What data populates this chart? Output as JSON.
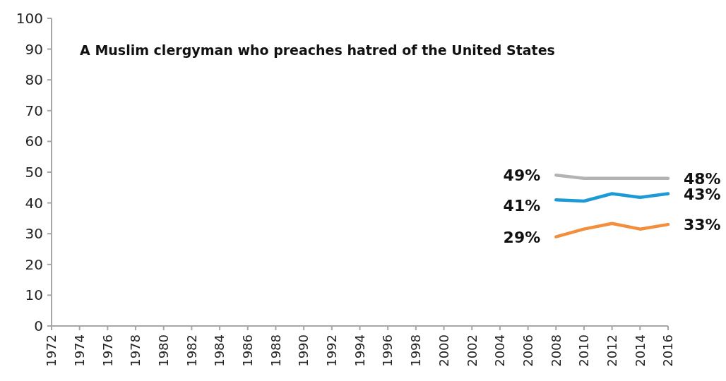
{
  "chart_data": {
    "type": "line",
    "title": "A Muslim clergyman who preaches hatred of the United States",
    "x": [
      2008,
      2010,
      2012,
      2014,
      2016
    ],
    "series": [
      {
        "color": "#b3b3b3",
        "values": [
          49,
          48,
          48,
          48,
          48
        ],
        "value_labels": [
          "49%",
          null,
          null,
          null,
          "48%"
        ]
      },
      {
        "color": "#1b9ad6",
        "values": [
          41,
          40.6,
          43,
          41.8,
          43
        ],
        "value_labels": [
          "41%",
          null,
          null,
          null,
          "43%"
        ]
      },
      {
        "color": "#f28e3c",
        "values": [
          29,
          31.5,
          33.3,
          31.5,
          33
        ],
        "value_labels": [
          "29%",
          null,
          null,
          null,
          "33%"
        ]
      }
    ],
    "xlim": [
      1972,
      2016
    ],
    "xticks": [
      1972,
      1974,
      1976,
      1978,
      1980,
      1982,
      1984,
      1986,
      1988,
      1990,
      1992,
      1994,
      1996,
      1998,
      2000,
      2002,
      2004,
      2006,
      2008,
      2010,
      2012,
      2014,
      2016
    ],
    "ylim": [
      0,
      100
    ],
    "yticks": [
      0,
      10,
      20,
      30,
      40,
      50,
      60,
      70,
      80,
      90,
      100
    ],
    "grid": false,
    "marker": "none",
    "line_style": "solid"
  }
}
